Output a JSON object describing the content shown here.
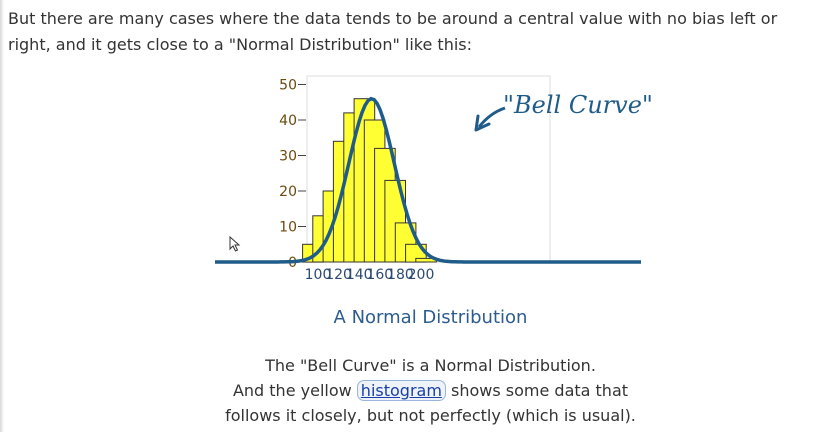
{
  "intro": {
    "line1": "But there are many cases where the data tends to be around a central value with no bias left or",
    "line2": "right, and it gets close to a \"Normal Distribution\" like this:"
  },
  "figure": {
    "caption": "A Normal Distribution",
    "annotation": "\"Bell Curve\""
  },
  "description": {
    "line1": "The \"Bell Curve\" is a Normal Distribution.",
    "line2_before": "And the yellow ",
    "link": "histogram",
    "line2_after": " shows some data that",
    "line3": "follows it closely, but not perfectly (which is usual)."
  },
  "colors": {
    "bar_fill": "#ffff33",
    "curve": "#1f5c8a",
    "axis_text": "#6b4a0f",
    "caption": "#2c5c8f"
  },
  "chart_data": {
    "type": "bar",
    "categories": [
      "95",
      "105",
      "115",
      "125",
      "135",
      "145",
      "155",
      "165",
      "175",
      "185",
      "195",
      "205"
    ],
    "values": [
      5,
      13,
      20,
      34,
      42,
      46,
      40,
      32,
      23,
      11,
      5,
      1
    ],
    "x_ticks": [
      "100",
      "120",
      "140",
      "160",
      "180",
      "200"
    ],
    "y_ticks": [
      "0",
      "10",
      "20",
      "30",
      "40",
      "50"
    ],
    "ylim": [
      0,
      50
    ],
    "curve_mean": 152,
    "curve_sd": 22,
    "curve_peak": 46,
    "annotation": "\"Bell Curve\"",
    "title": "A Normal Distribution"
  }
}
